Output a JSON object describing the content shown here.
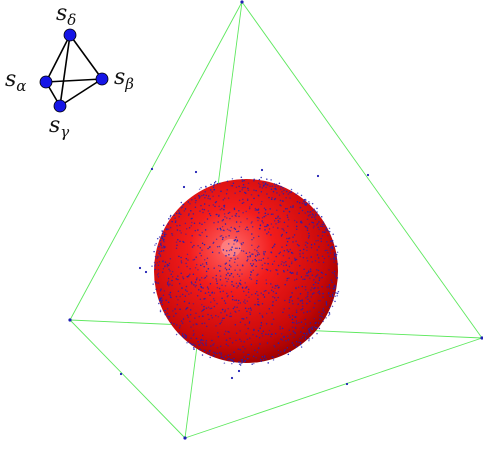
{
  "legend_diagram": {
    "vertex_labels": {
      "delta": {
        "base": "s",
        "sub": "δ"
      },
      "alpha": {
        "base": "s",
        "sub": "α"
      },
      "beta": {
        "base": "s",
        "sub": "β"
      },
      "gamma": {
        "base": "s",
        "sub": "γ"
      }
    },
    "node_color": "#1515e6",
    "edge_color": "#000000"
  },
  "scene": {
    "edge_color": "#5ee85e",
    "sphere_color": "#e01010",
    "point_color": "#1f1fb4"
  }
}
